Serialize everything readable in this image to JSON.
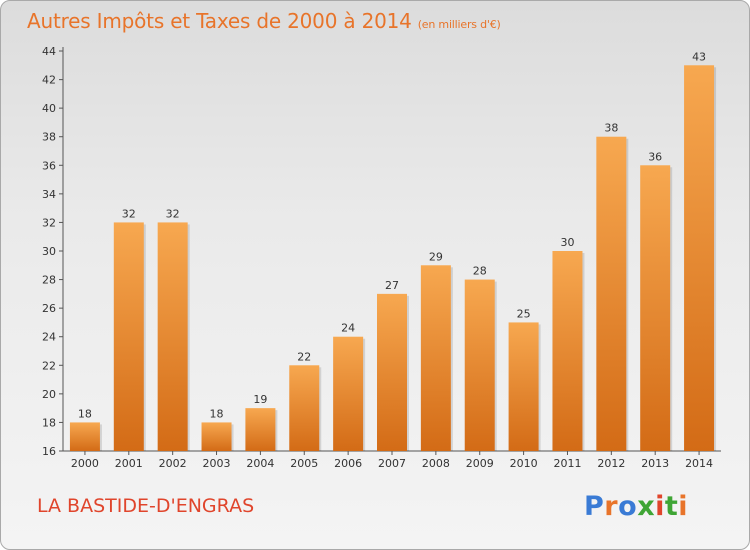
{
  "header": {
    "title": "Autres Impôts et Taxes de 2000 à 2014",
    "subtitle": "(en milliers d'€)"
  },
  "footer": {
    "commune": "LA BASTIDE-D'ENGRAS",
    "logo_text": "Proxiti",
    "logo_letters": [
      "P",
      "r",
      "o",
      "x",
      "i",
      "t",
      "i"
    ],
    "logo_colors": [
      "#3a7bd5",
      "#e8742a",
      "#3a7bd5",
      "#3fa535",
      "#e0452c",
      "#3fa535",
      "#e8742a"
    ]
  },
  "colors": {
    "bar_light": "#f7a850",
    "bar_dark": "#d36b16",
    "title": "#e8742a",
    "commune": "#e0452c"
  },
  "chart_data": {
    "type": "bar",
    "title": "Autres Impôts et Taxes de 2000 à 2014",
    "subtitle": "(en milliers d'€)",
    "xlabel": "",
    "ylabel": "",
    "categories": [
      "2000",
      "2001",
      "2002",
      "2003",
      "2004",
      "2005",
      "2006",
      "2007",
      "2008",
      "2009",
      "2010",
      "2011",
      "2012",
      "2013",
      "2014"
    ],
    "values": [
      18,
      32,
      32,
      18,
      19,
      22,
      24,
      27,
      29,
      28,
      25,
      30,
      38,
      36,
      43
    ],
    "ylim": [
      16,
      44
    ],
    "yticks": [
      16,
      18,
      20,
      22,
      24,
      26,
      28,
      30,
      32,
      34,
      36,
      38,
      40,
      42,
      44
    ],
    "grid": false,
    "legend": "none"
  }
}
